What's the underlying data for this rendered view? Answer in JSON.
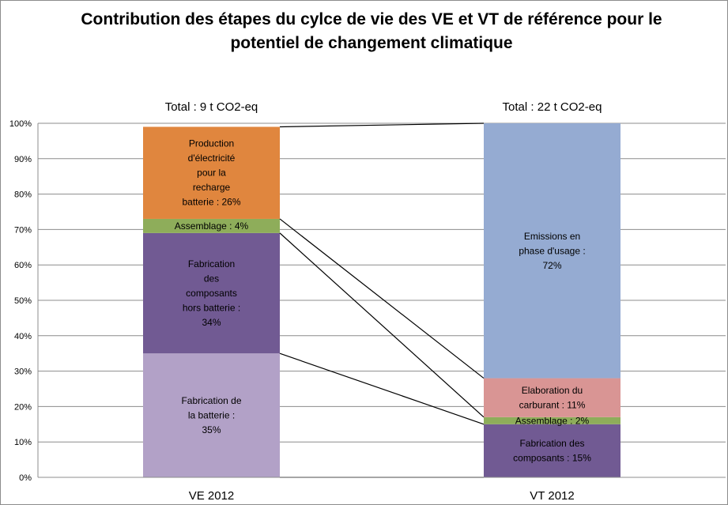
{
  "chart_data": {
    "type": "bar",
    "stacked": true,
    "title_line1": "Contribution des étapes du cylce de vie des VE et VT de référence pour le",
    "title_line2": "potentiel de changement climatique",
    "ylim": [
      0,
      100
    ],
    "yticks": [
      "0%",
      "10%",
      "20%",
      "30%",
      "40%",
      "50%",
      "60%",
      "70%",
      "80%",
      "90%",
      "100%"
    ],
    "grid": true,
    "bars": [
      {
        "category": "VE 2012",
        "total": "Total : 9 t CO2-eq",
        "segments": [
          {
            "label": [
              "Fabrication de",
              "la batterie :",
              "35%"
            ],
            "value": 35,
            "color": "#b2a1c7"
          },
          {
            "label": [
              "Fabrication",
              "des",
              "composants",
              "hors batterie :",
              "34%"
            ],
            "value": 34,
            "color": "#715a93"
          },
          {
            "label": [
              "Assemblage : 4%"
            ],
            "value": 4,
            "color": "#8ead5a"
          },
          {
            "label": [
              "Production",
              "d'électricité",
              "pour la",
              "recharge",
              "batterie : 26%"
            ],
            "value": 26,
            "color": "#e0863e"
          }
        ]
      },
      {
        "category": "VT 2012",
        "total": "Total : 22 t CO2-eq",
        "segments": [
          {
            "label": [
              "Fabrication des",
              "composants : 15%"
            ],
            "value": 15,
            "color": "#715a93"
          },
          {
            "label": [
              "Assemblage : 2%"
            ],
            "value": 2,
            "color": "#8ead5a"
          },
          {
            "label": [
              "Elaboration du",
              "carburant : 11%"
            ],
            "value": 11,
            "color": "#d99594"
          },
          {
            "label": [
              "Emissions en",
              "phase d'usage :",
              "72%"
            ],
            "value": 72,
            "color": "#95abd2"
          }
        ]
      }
    ]
  }
}
